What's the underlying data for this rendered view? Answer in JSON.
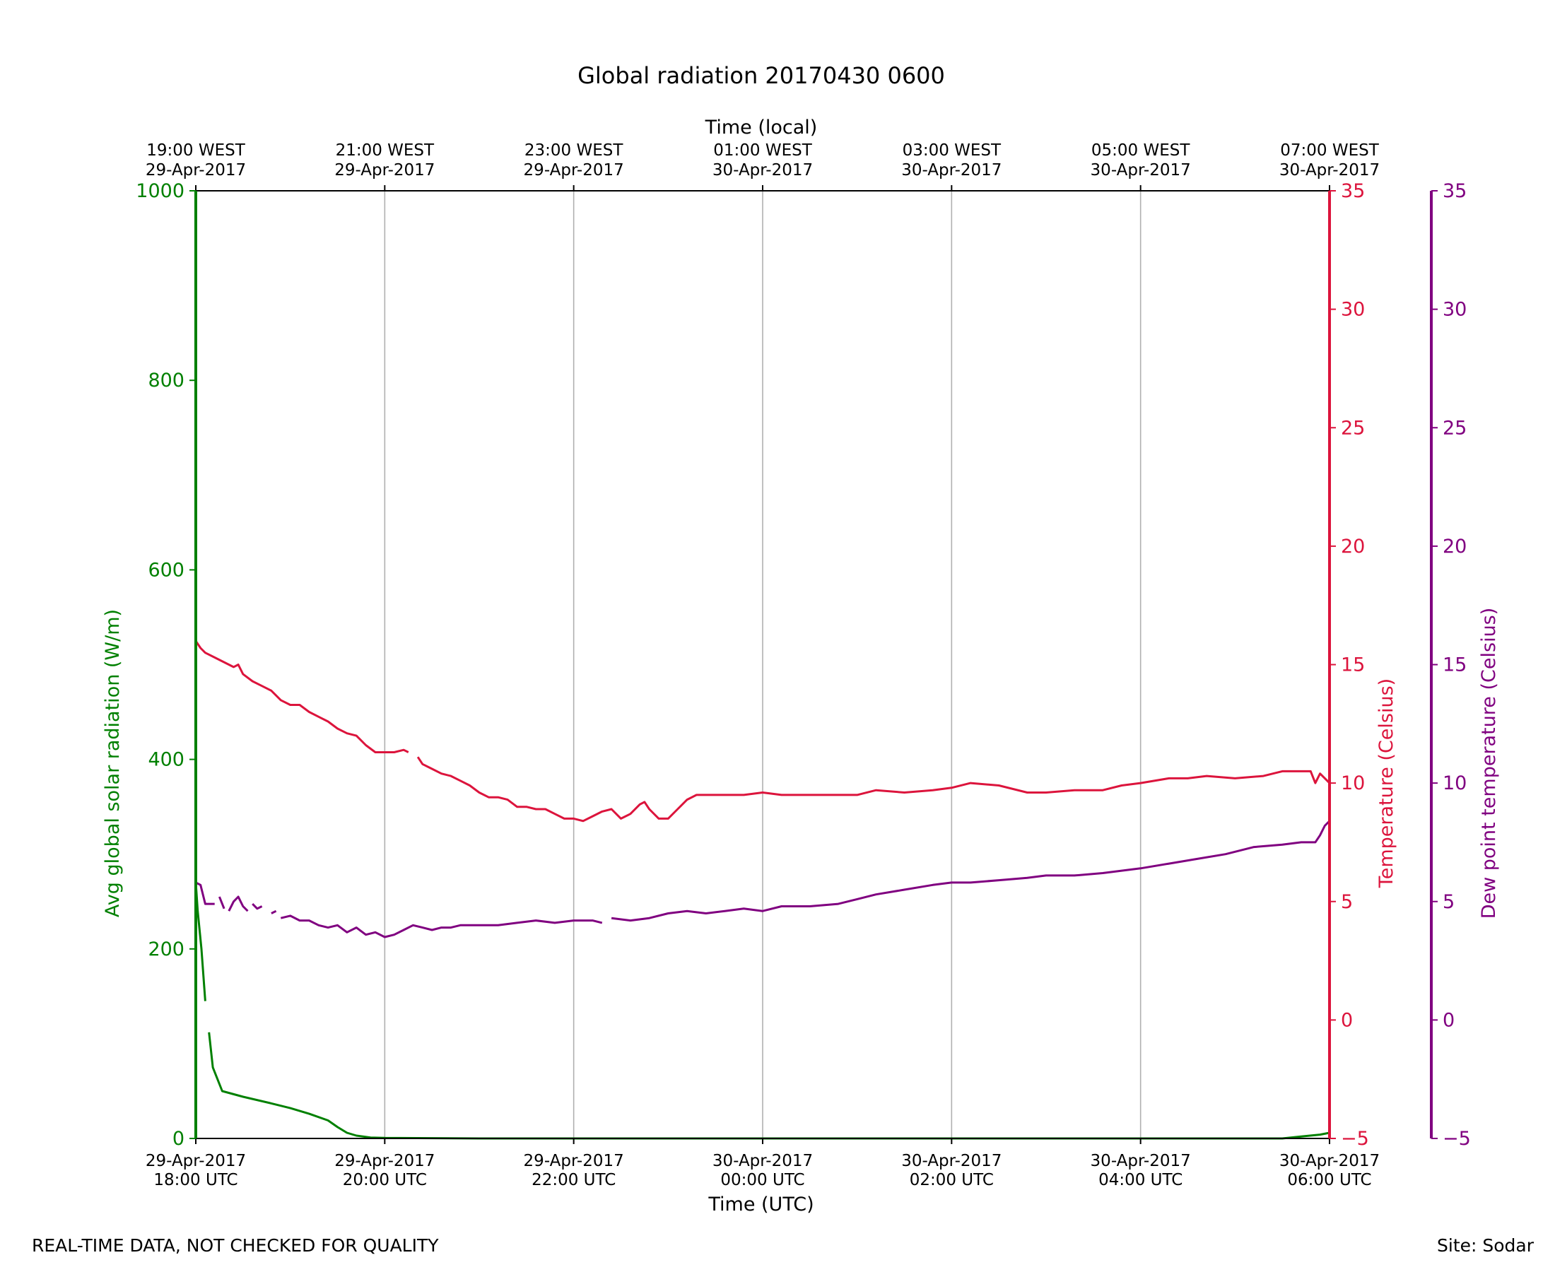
{
  "chart_data": {
    "type": "line",
    "title": "Global radiation 20170430 0600",
    "xlabel": "Time (UTC)",
    "xlabel_top": "Time (local)",
    "x_range": [
      "29-Apr-2017 18:00 UTC",
      "30-Apr-2017 06:00 UTC"
    ],
    "x_ticks": [
      {
        "hour": 0,
        "line1": "29-Apr-2017",
        "line2": "18:00 UTC",
        "top1": "19:00 WEST",
        "top2": "29-Apr-2017"
      },
      {
        "hour": 2,
        "line1": "29-Apr-2017",
        "line2": "20:00 UTC",
        "top1": "21:00 WEST",
        "top2": "29-Apr-2017"
      },
      {
        "hour": 4,
        "line1": "29-Apr-2017",
        "line2": "22:00 UTC",
        "top1": "23:00 WEST",
        "top2": "29-Apr-2017"
      },
      {
        "hour": 6,
        "line1": "30-Apr-2017",
        "line2": "00:00 UTC",
        "top1": "01:00 WEST",
        "top2": "30-Apr-2017"
      },
      {
        "hour": 8,
        "line1": "30-Apr-2017",
        "line2": "02:00 UTC",
        "top1": "03:00 WEST",
        "top2": "30-Apr-2017"
      },
      {
        "hour": 10,
        "line1": "30-Apr-2017",
        "line2": "04:00 UTC",
        "top1": "05:00 WEST",
        "top2": "30-Apr-2017"
      },
      {
        "hour": 12,
        "line1": "30-Apr-2017",
        "line2": "06:00 UTC",
        "top1": "07:00 WEST",
        "top2": "30-Apr-2017"
      }
    ],
    "grid": "vertical",
    "axes": {
      "radiation": {
        "label": "Avg global solar radiation (W/m)",
        "ylim": [
          0,
          1000
        ],
        "ticks": [
          0,
          200,
          400,
          600,
          800,
          1000
        ],
        "color": "#008000",
        "side": "left"
      },
      "temperature": {
        "label": "Temperature (Celsius)",
        "ylim": [
          -5,
          35
        ],
        "ticks": [
          -5,
          0,
          5,
          10,
          15,
          20,
          25,
          30,
          35
        ],
        "color": "#dc143c",
        "side": "right"
      },
      "dewpoint": {
        "label": "Dew point temperature (Celsius)",
        "ylim": [
          -5,
          35
        ],
        "ticks": [
          -5,
          0,
          5,
          10,
          15,
          20,
          25,
          30,
          35
        ],
        "color": "#800080",
        "side": "right-outer"
      }
    },
    "series": [
      {
        "axis": "radiation",
        "color": "#008000",
        "segments": [
          [
            [
              0,
              1000
            ],
            [
              0,
              270
            ],
            [
              0.02,
              240
            ],
            [
              0.06,
              200
            ],
            [
              0.1,
              145
            ]
          ],
          [
            [
              0.14,
              112
            ],
            [
              0.18,
              75
            ],
            [
              0.22,
              65
            ],
            [
              0.28,
              50
            ],
            [
              0.5,
              44
            ],
            [
              0.8,
              37
            ],
            [
              1.0,
              32
            ],
            [
              1.2,
              26
            ],
            [
              1.4,
              19
            ],
            [
              1.5,
              12
            ],
            [
              1.6,
              6
            ],
            [
              1.7,
              3
            ],
            [
              1.85,
              1
            ],
            [
              2.0,
              0.5
            ],
            [
              3.0,
              0
            ],
            [
              6.0,
              0
            ],
            [
              9.0,
              0
            ],
            [
              11.5,
              0
            ],
            [
              11.7,
              2
            ],
            [
              11.9,
              4
            ],
            [
              12.0,
              6
            ]
          ]
        ]
      },
      {
        "axis": "temperature",
        "color": "#dc143c",
        "segments": [
          [
            [
              0,
              16.0
            ],
            [
              0.05,
              15.7
            ],
            [
              0.1,
              15.5
            ],
            [
              0.2,
              15.3
            ],
            [
              0.3,
              15.1
            ],
            [
              0.4,
              14.9
            ],
            [
              0.45,
              15.0
            ],
            [
              0.5,
              14.6
            ],
            [
              0.6,
              14.3
            ],
            [
              0.7,
              14.1
            ],
            [
              0.8,
              13.9
            ],
            [
              0.9,
              13.5
            ],
            [
              1.0,
              13.3
            ],
            [
              1.1,
              13.3
            ],
            [
              1.2,
              13.0
            ],
            [
              1.3,
              12.8
            ],
            [
              1.4,
              12.6
            ],
            [
              1.5,
              12.3
            ],
            [
              1.6,
              12.1
            ],
            [
              1.7,
              12.0
            ],
            [
              1.8,
              11.6
            ],
            [
              1.9,
              11.3
            ],
            [
              2.0,
              11.3
            ],
            [
              2.1,
              11.3
            ],
            [
              2.2,
              11.4
            ],
            [
              2.25,
              11.3
            ]
          ],
          [
            [
              2.35,
              11.1
            ],
            [
              2.4,
              10.8
            ],
            [
              2.5,
              10.6
            ],
            [
              2.6,
              10.4
            ],
            [
              2.7,
              10.3
            ],
            [
              2.8,
              10.1
            ],
            [
              2.9,
              9.9
            ],
            [
              3.0,
              9.6
            ],
            [
              3.1,
              9.4
            ],
            [
              3.2,
              9.4
            ],
            [
              3.3,
              9.3
            ],
            [
              3.4,
              9.0
            ],
            [
              3.5,
              9.0
            ],
            [
              3.6,
              8.9
            ],
            [
              3.7,
              8.9
            ],
            [
              3.8,
              8.7
            ],
            [
              3.9,
              8.5
            ],
            [
              4.0,
              8.5
            ],
            [
              4.1,
              8.4
            ],
            [
              4.2,
              8.6
            ],
            [
              4.3,
              8.8
            ],
            [
              4.4,
              8.9
            ],
            [
              4.5,
              8.5
            ],
            [
              4.6,
              8.7
            ],
            [
              4.7,
              9.1
            ],
            [
              4.75,
              9.2
            ],
            [
              4.8,
              8.9
            ],
            [
              4.9,
              8.5
            ],
            [
              5.0,
              8.5
            ],
            [
              5.1,
              8.9
            ],
            [
              5.2,
              9.3
            ],
            [
              5.3,
              9.5
            ],
            [
              5.6,
              9.5
            ],
            [
              5.8,
              9.5
            ],
            [
              6.0,
              9.6
            ],
            [
              6.2,
              9.5
            ],
            [
              6.5,
              9.5
            ],
            [
              7.0,
              9.5
            ],
            [
              7.2,
              9.7
            ],
            [
              7.5,
              9.6
            ],
            [
              7.8,
              9.7
            ],
            [
              8.0,
              9.8
            ],
            [
              8.2,
              10.0
            ],
            [
              8.5,
              9.9
            ],
            [
              8.8,
              9.6
            ],
            [
              9.0,
              9.6
            ],
            [
              9.3,
              9.7
            ],
            [
              9.6,
              9.7
            ],
            [
              9.8,
              9.9
            ],
            [
              10.0,
              10.0
            ],
            [
              10.3,
              10.2
            ],
            [
              10.5,
              10.2
            ],
            [
              10.7,
              10.3
            ],
            [
              11.0,
              10.2
            ],
            [
              11.3,
              10.3
            ],
            [
              11.5,
              10.5
            ],
            [
              11.7,
              10.5
            ],
            [
              11.8,
              10.5
            ],
            [
              11.85,
              10.0
            ],
            [
              11.9,
              10.4
            ],
            [
              12.0,
              10.0
            ]
          ]
        ]
      },
      {
        "axis": "dewpoint",
        "color": "#800080",
        "segments": [
          [
            [
              0,
              5.8
            ],
            [
              0.05,
              5.7
            ],
            [
              0.1,
              4.9
            ],
            [
              0.15,
              4.9
            ],
            [
              0.2,
              4.9
            ]
          ],
          [
            [
              0.25,
              5.2
            ],
            [
              0.3,
              4.7
            ]
          ],
          [
            [
              0.35,
              4.6
            ],
            [
              0.4,
              5.0
            ],
            [
              0.45,
              5.2
            ],
            [
              0.5,
              4.8
            ],
            [
              0.55,
              4.6
            ]
          ],
          [
            [
              0.6,
              4.9
            ],
            [
              0.65,
              4.7
            ],
            [
              0.7,
              4.8
            ]
          ],
          [
            [
              0.8,
              4.5
            ],
            [
              0.85,
              4.6
            ]
          ],
          [
            [
              0.9,
              4.3
            ],
            [
              1.0,
              4.4
            ],
            [
              1.1,
              4.2
            ],
            [
              1.2,
              4.2
            ],
            [
              1.3,
              4.0
            ],
            [
              1.4,
              3.9
            ],
            [
              1.5,
              4.0
            ],
            [
              1.6,
              3.7
            ],
            [
              1.7,
              3.9
            ],
            [
              1.8,
              3.6
            ],
            [
              1.9,
              3.7
            ],
            [
              2.0,
              3.5
            ],
            [
              2.1,
              3.6
            ],
            [
              2.2,
              3.8
            ],
            [
              2.3,
              4.0
            ],
            [
              2.4,
              3.9
            ],
            [
              2.5,
              3.8
            ],
            [
              2.6,
              3.9
            ],
            [
              2.7,
              3.9
            ],
            [
              2.8,
              4.0
            ],
            [
              3.0,
              4.0
            ],
            [
              3.2,
              4.0
            ],
            [
              3.4,
              4.1
            ],
            [
              3.6,
              4.2
            ],
            [
              3.8,
              4.1
            ],
            [
              4.0,
              4.2
            ],
            [
              4.2,
              4.2
            ],
            [
              4.3,
              4.1
            ]
          ],
          [
            [
              4.4,
              4.3
            ],
            [
              4.6,
              4.2
            ],
            [
              4.8,
              4.3
            ],
            [
              5.0,
              4.5
            ],
            [
              5.2,
              4.6
            ],
            [
              5.4,
              4.5
            ],
            [
              5.6,
              4.6
            ],
            [
              5.8,
              4.7
            ],
            [
              6.0,
              4.6
            ],
            [
              6.2,
              4.8
            ],
            [
              6.5,
              4.8
            ],
            [
              6.8,
              4.9
            ],
            [
              7.0,
              5.1
            ],
            [
              7.2,
              5.3
            ],
            [
              7.5,
              5.5
            ],
            [
              7.8,
              5.7
            ],
            [
              8.0,
              5.8
            ],
            [
              8.2,
              5.8
            ],
            [
              8.5,
              5.9
            ],
            [
              8.8,
              6.0
            ],
            [
              9.0,
              6.1
            ],
            [
              9.3,
              6.1
            ],
            [
              9.6,
              6.2
            ],
            [
              10.0,
              6.4
            ],
            [
              10.3,
              6.6
            ],
            [
              10.6,
              6.8
            ],
            [
              10.9,
              7.0
            ],
            [
              11.2,
              7.3
            ],
            [
              11.5,
              7.4
            ],
            [
              11.7,
              7.5
            ],
            [
              11.85,
              7.5
            ],
            [
              11.9,
              7.8
            ],
            [
              11.95,
              8.2
            ],
            [
              12.0,
              8.4
            ]
          ]
        ]
      }
    ]
  },
  "footer": {
    "left": "REAL-TIME DATA, NOT CHECKED FOR QUALITY",
    "right": "Site: Sodar"
  }
}
